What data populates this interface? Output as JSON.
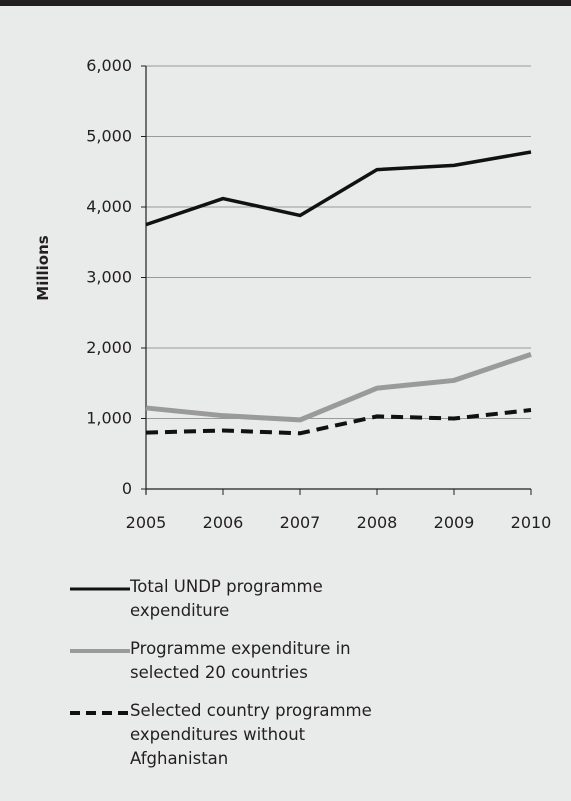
{
  "chart_data": {
    "type": "line",
    "ylabel": "Millions",
    "xlabel": "",
    "title": "",
    "x": [
      "2005",
      "2006",
      "2007",
      "2008",
      "2009",
      "2010"
    ],
    "ylim": [
      0,
      6000
    ],
    "yticks": [
      0,
      1000,
      2000,
      3000,
      4000,
      5000,
      6000
    ],
    "ytick_labels": [
      "0",
      "1,000",
      "2,000",
      "3,000",
      "4,000",
      "5,000",
      "6,000"
    ],
    "grid": true,
    "legend_position": "bottom",
    "series": [
      {
        "name": "Total UNDP programme expenditure",
        "values": [
          3750,
          4120,
          3880,
          4530,
          4590,
          4780
        ],
        "color": "#111111",
        "style": "solid"
      },
      {
        "name": "Programme expenditure in selected 20 countries",
        "values": [
          1150,
          1040,
          980,
          1430,
          1540,
          1910
        ],
        "color": "#9a9a9a",
        "style": "solid"
      },
      {
        "name": "Selected country programme expenditures without Afghanistan",
        "values": [
          800,
          830,
          790,
          1030,
          1000,
          1120
        ],
        "color": "#111111",
        "style": "dashed"
      }
    ]
  }
}
